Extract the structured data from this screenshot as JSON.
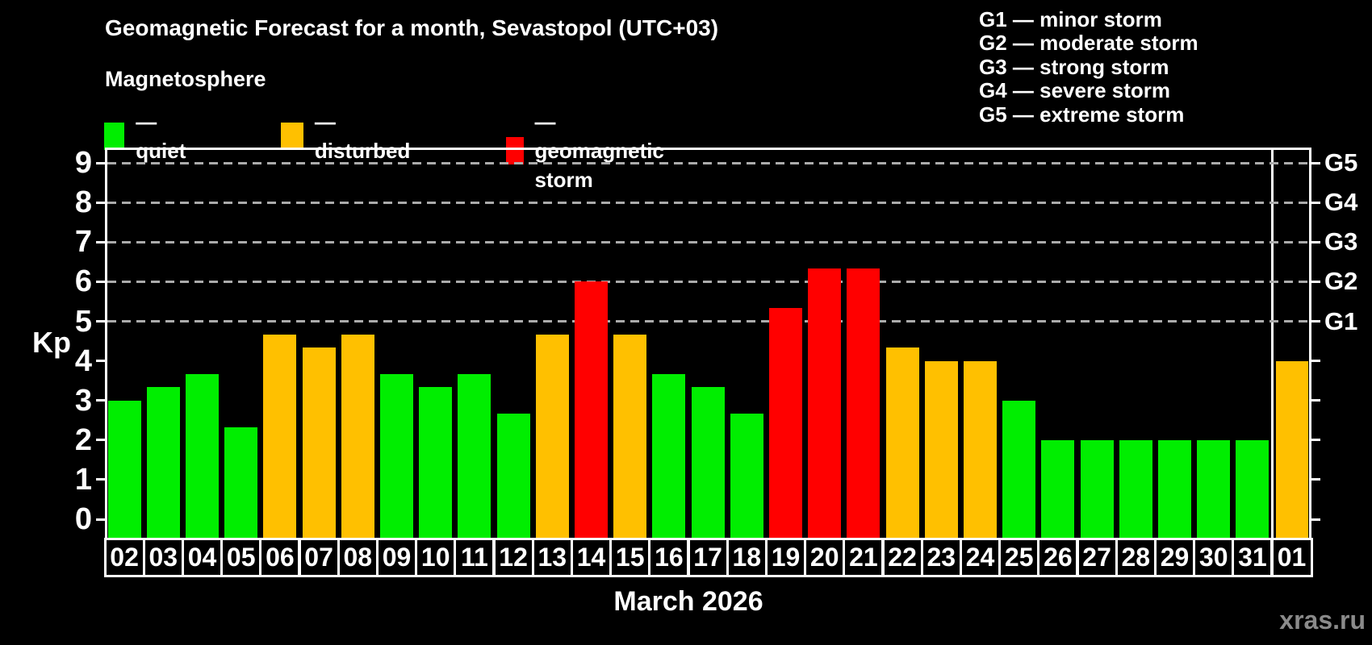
{
  "page": {
    "title": "Geomagnetic Forecast for a month, Sevastopol (UTC+03)",
    "subtitle": "Magnetosphere",
    "month_label": "March 2026",
    "kp_axis_label": "Kp",
    "watermark": "xras.ru"
  },
  "legend": {
    "items": [
      {
        "key": "quiet",
        "label": "— quiet",
        "color": "#00ee00"
      },
      {
        "key": "disturbed",
        "label": "— disturbed",
        "color": "#ffc000"
      },
      {
        "key": "storm",
        "label": "— geomagnetic storm",
        "color": "#ff0000"
      }
    ]
  },
  "storm_scale_legend": {
    "lines": [
      "G1 — minor storm",
      "G2 — moderate storm",
      "G3 — strong storm",
      "G4 — severe storm",
      "G5 — extreme storm"
    ]
  },
  "chart_data": {
    "type": "bar",
    "title": "Geomagnetic Forecast for a month, Sevastopol (UTC+03)",
    "xlabel": "March 2026",
    "ylabel": "Kp",
    "ylim": [
      0,
      9
    ],
    "yticks": [
      0,
      1,
      2,
      3,
      4,
      5,
      6,
      7,
      8,
      9
    ],
    "grid": "horizontal dashed lines at Kp 5-9 only",
    "gridlines_at_kp": [
      5,
      6,
      7,
      8,
      9
    ],
    "right_axis_g_labels": [
      {
        "kp": 5,
        "label": "G1"
      },
      {
        "kp": 6,
        "label": "G2"
      },
      {
        "kp": 7,
        "label": "G3"
      },
      {
        "kp": 8,
        "label": "G4"
      },
      {
        "kp": 9,
        "label": "G5"
      }
    ],
    "legend_position": "top-left",
    "colors": {
      "quiet": "#00ee00",
      "disturbed": "#ffc000",
      "storm": "#ff0000"
    },
    "categories": [
      "02",
      "03",
      "04",
      "05",
      "06",
      "07",
      "08",
      "09",
      "10",
      "11",
      "12",
      "13",
      "14",
      "15",
      "16",
      "17",
      "18",
      "19",
      "20",
      "21",
      "22",
      "23",
      "24",
      "25",
      "26",
      "27",
      "28",
      "29",
      "30",
      "31",
      "01"
    ],
    "values": [
      3.0,
      3.33,
      3.67,
      2.33,
      4.67,
      4.33,
      4.67,
      3.67,
      3.33,
      3.67,
      2.67,
      4.67,
      6.0,
      4.67,
      3.67,
      3.33,
      2.67,
      5.33,
      6.33,
      6.33,
      4.33,
      4.0,
      4.0,
      3.0,
      2.0,
      2.0,
      2.0,
      2.0,
      2.0,
      2.0,
      4.0
    ],
    "bars": [
      {
        "day": "02",
        "kp": 3.0,
        "status": "quiet"
      },
      {
        "day": "03",
        "kp": 3.33,
        "status": "quiet"
      },
      {
        "day": "04",
        "kp": 3.67,
        "status": "quiet"
      },
      {
        "day": "05",
        "kp": 2.33,
        "status": "quiet"
      },
      {
        "day": "06",
        "kp": 4.67,
        "status": "disturbed"
      },
      {
        "day": "07",
        "kp": 4.33,
        "status": "disturbed"
      },
      {
        "day": "08",
        "kp": 4.67,
        "status": "disturbed"
      },
      {
        "day": "09",
        "kp": 3.67,
        "status": "quiet"
      },
      {
        "day": "10",
        "kp": 3.33,
        "status": "quiet"
      },
      {
        "day": "11",
        "kp": 3.67,
        "status": "quiet"
      },
      {
        "day": "12",
        "kp": 2.67,
        "status": "quiet"
      },
      {
        "day": "13",
        "kp": 4.67,
        "status": "disturbed"
      },
      {
        "day": "14",
        "kp": 6.0,
        "status": "storm"
      },
      {
        "day": "15",
        "kp": 4.67,
        "status": "disturbed"
      },
      {
        "day": "16",
        "kp": 3.67,
        "status": "quiet"
      },
      {
        "day": "17",
        "kp": 3.33,
        "status": "quiet"
      },
      {
        "day": "18",
        "kp": 2.67,
        "status": "quiet"
      },
      {
        "day": "19",
        "kp": 5.33,
        "status": "storm"
      },
      {
        "day": "20",
        "kp": 6.33,
        "status": "storm"
      },
      {
        "day": "21",
        "kp": 6.33,
        "status": "storm"
      },
      {
        "day": "22",
        "kp": 4.33,
        "status": "disturbed"
      },
      {
        "day": "23",
        "kp": 4.0,
        "status": "disturbed"
      },
      {
        "day": "24",
        "kp": 4.0,
        "status": "disturbed"
      },
      {
        "day": "25",
        "kp": 3.0,
        "status": "quiet"
      },
      {
        "day": "26",
        "kp": 2.0,
        "status": "quiet"
      },
      {
        "day": "27",
        "kp": 2.0,
        "status": "quiet"
      },
      {
        "day": "28",
        "kp": 2.0,
        "status": "quiet"
      },
      {
        "day": "29",
        "kp": 2.0,
        "status": "quiet"
      },
      {
        "day": "30",
        "kp": 2.0,
        "status": "quiet"
      },
      {
        "day": "31",
        "kp": 2.0,
        "status": "quiet"
      },
      {
        "day": "01",
        "kp": 4.0,
        "status": "disturbed",
        "next_month": true
      }
    ]
  }
}
